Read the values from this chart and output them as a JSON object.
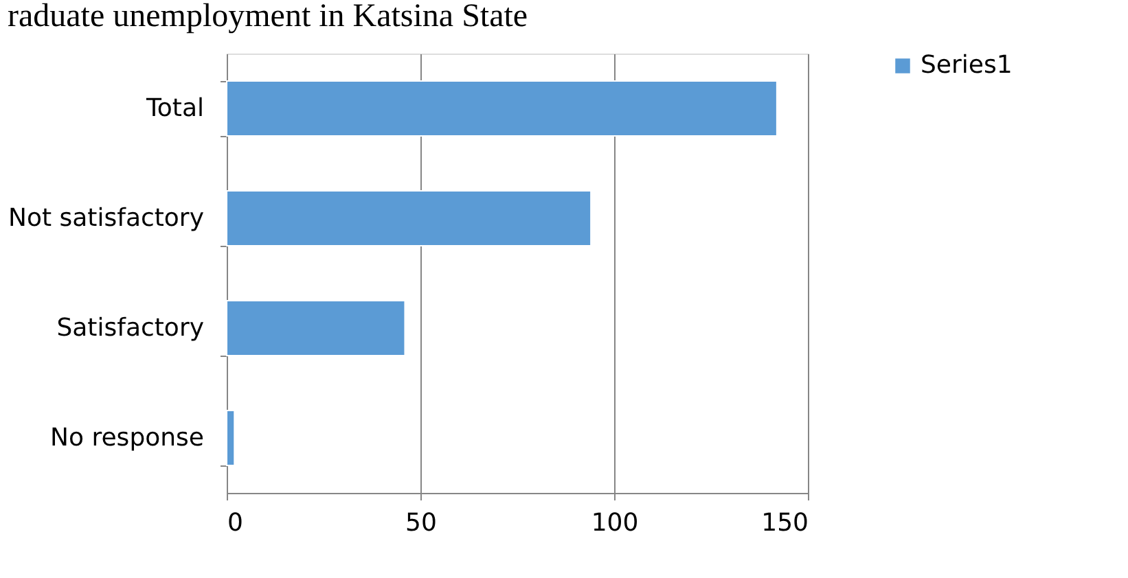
{
  "chart_data": {
    "type": "bar",
    "orientation": "horizontal",
    "title": "raduate unemployment in Katsina State",
    "categories": [
      "Total",
      "Not satisfactory",
      "Satisfactory",
      "No response"
    ],
    "series": [
      {
        "name": "Series1",
        "color": "#5b9bd5",
        "values": [
          142,
          94,
          46,
          2
        ]
      }
    ],
    "xlim": [
      0,
      150
    ],
    "xticks": [
      0,
      50,
      100,
      150
    ],
    "grid": "x",
    "legend": "right"
  }
}
